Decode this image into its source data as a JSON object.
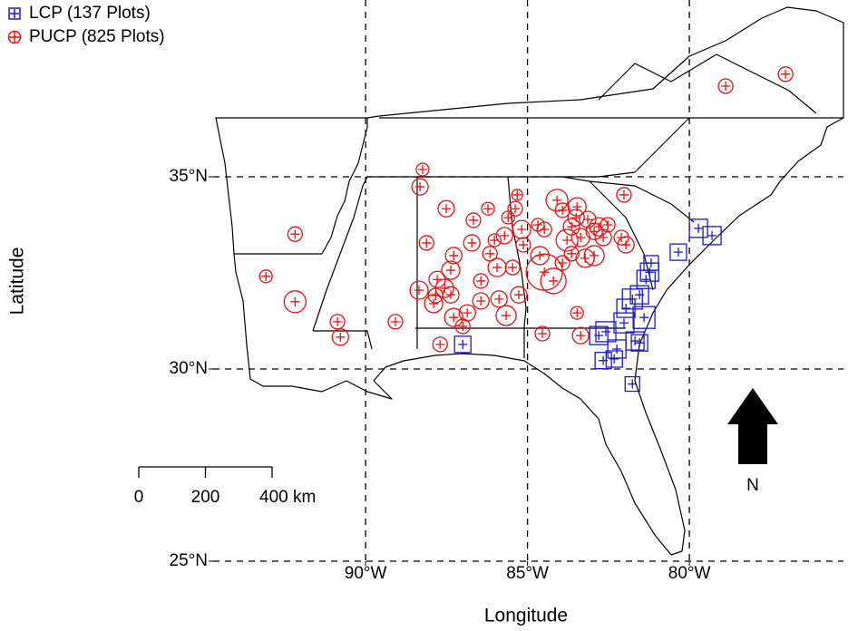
{
  "chart_data": {
    "type": "map",
    "x_label": "Longitude",
    "y_label": "Latitude",
    "xlim": [
      -94.71,
      -75.24
    ],
    "ylim": [
      25,
      39.6
    ],
    "xticks": [
      {
        "value": -90,
        "label": "90°W"
      },
      {
        "value": -85,
        "label": "85°W"
      },
      {
        "value": -80,
        "label": "80°W"
      }
    ],
    "yticks": [
      {
        "value": 25,
        "label": "25°N"
      },
      {
        "value": 30,
        "label": "30°N"
      },
      {
        "value": 35,
        "label": "35°N"
      }
    ],
    "grid": true,
    "series": [
      {
        "name": "LCP (137 Plots)",
        "color": "#1a1acc",
        "marker": "square",
        "x": [
          -87.0,
          -81.76,
          -82.66,
          -82.32,
          -82.58,
          -82.02,
          -81.68,
          -81.76,
          -81.54,
          -81.34,
          -81.18,
          -80.34,
          -79.72,
          -79.3,
          -81.4,
          -81.96,
          -82.24,
          -82.8,
          -81.54,
          -81.23
        ],
        "y": [
          30.64,
          29.61,
          30.22,
          30.26,
          30.97,
          31.2,
          30.73,
          31.82,
          31.93,
          32.33,
          32.76,
          33.04,
          33.66,
          33.47,
          31.34,
          31.58,
          30.52,
          30.87,
          30.68,
          32.52
        ],
        "sizes": [
          9,
          8,
          9,
          9,
          11,
          11,
          10,
          11,
          10,
          10,
          8,
          9,
          10,
          10,
          12,
          10,
          10,
          10,
          9,
          10
        ]
      },
      {
        "name": "PUCP (825 Plots)",
        "color": "#ee1111",
        "marker": "circle",
        "x": [
          -77.03,
          -78.88,
          -88.24,
          -88.32,
          -87.51,
          -86.67,
          -86.22,
          -85.32,
          -85.38,
          -82.02,
          -84.09,
          -83.47,
          -83.14,
          -82.8,
          -83.64,
          -83.78,
          -83.36,
          -82.66,
          -82.1,
          -82.94,
          -81.96,
          -83.64,
          -85.18,
          -85.71,
          -86.72,
          -86.16,
          -85.94,
          -85.46,
          -88.12,
          -87.37,
          -87.79,
          -88.35,
          -87.9,
          -87.37,
          -87.28,
          -86.86,
          -86.44,
          -85.88,
          -85.27,
          -85.66,
          -87.0,
          -87.7,
          -89.08,
          -90.87,
          -90.78,
          -92.18,
          -93.08,
          -92.18,
          -84.48,
          -84.2,
          -84.62,
          -83.92,
          -84.54,
          -83.36,
          -83.47,
          -85.13,
          -84.68,
          -85.6,
          -87.28,
          -87.56,
          -87.84,
          -86.44,
          -86.02,
          -83.22,
          -82.94,
          -82.52,
          -83.92,
          -83.5,
          -84.48
        ],
        "y": [
          37.67,
          37.36,
          35.19,
          34.74,
          34.17,
          33.87,
          34.17,
          34.53,
          34.17,
          34.53,
          34.39,
          34.22,
          33.89,
          33.7,
          33.7,
          33.35,
          33.42,
          33.42,
          33.42,
          32.95,
          33.23,
          33.0,
          33.63,
          33.47,
          33.28,
          33.0,
          32.64,
          32.64,
          33.28,
          32.57,
          32.33,
          32.05,
          31.7,
          31.93,
          31.34,
          31.46,
          31.77,
          31.82,
          31.93,
          31.39,
          31.11,
          30.64,
          31.23,
          31.23,
          30.83,
          33.51,
          32.41,
          31.75,
          32.52,
          32.29,
          32.95,
          32.76,
          30.92,
          30.87,
          31.46,
          33.23,
          33.75,
          33.94,
          32.95,
          32.1,
          31.91,
          32.29,
          33.35,
          32.88,
          33.58,
          33.75,
          34.13,
          33.94,
          33.63
        ],
        "sizes": [
          8,
          8,
          7,
          9,
          9,
          8,
          7,
          6,
          8,
          8,
          12,
          10,
          9,
          10,
          9,
          12,
          10,
          9,
          8,
          11,
          9,
          8,
          10,
          9,
          9,
          8,
          10,
          8,
          8,
          10,
          9,
          10,
          10,
          9,
          10,
          9,
          9,
          9,
          9,
          11,
          8,
          8,
          8,
          8,
          9,
          8,
          7,
          12,
          20,
          14,
          10,
          8,
          8,
          9,
          7,
          8,
          7,
          7,
          9,
          10,
          8,
          8,
          7,
          10,
          9,
          8,
          8,
          9,
          8
        ]
      }
    ],
    "scale_bar": {
      "ticks": [
        0,
        200,
        {
          "value": 400,
          "label": "400 km"
        }
      ]
    },
    "north_label": "N"
  }
}
